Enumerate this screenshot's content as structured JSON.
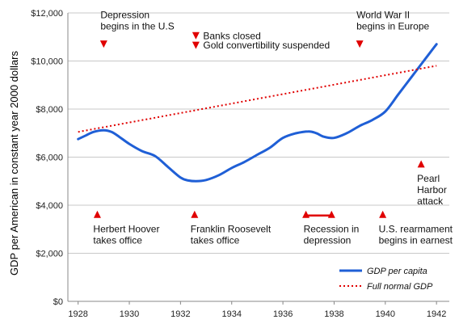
{
  "chart_data": {
    "type": "line",
    "ylabel": "GDP per American in constant year 2000 dollars",
    "xlim": [
      1927.6,
      1942.5
    ],
    "ylim": [
      0,
      12000
    ],
    "x_ticks": [
      1928,
      1930,
      1932,
      1934,
      1936,
      1938,
      1940,
      1942
    ],
    "y_ticks": [
      0,
      2000,
      4000,
      6000,
      8000,
      10000,
      12000
    ],
    "y_tick_labels": [
      "$0",
      "$2,000",
      "$4,000",
      "$6,000",
      "$8,000",
      "$10,000",
      "$12,000"
    ],
    "x_tick_labels": [
      "1928",
      "1930",
      "1932",
      "1934",
      "1936",
      "1938",
      "1940",
      "1942"
    ],
    "grid": "horizontal",
    "series": [
      {
        "name": "GDP per capita",
        "style": "solid",
        "color": "#1f5fd6",
        "x": [
          1928,
          1928.3,
          1928.6,
          1929,
          1929.3,
          1929.6,
          1930,
          1930.5,
          1931,
          1931.5,
          1932,
          1932.3,
          1932.6,
          1933,
          1933.5,
          1934,
          1934.5,
          1935,
          1935.5,
          1936,
          1936.5,
          1937,
          1937.3,
          1937.6,
          1938,
          1938.5,
          1939,
          1939.5,
          1940,
          1940.5,
          1941,
          1941.5,
          1942
        ],
        "y": [
          6750,
          6900,
          7050,
          7120,
          7050,
          6850,
          6550,
          6250,
          6050,
          5600,
          5150,
          5030,
          5000,
          5050,
          5250,
          5550,
          5800,
          6100,
          6400,
          6800,
          6990,
          7070,
          7000,
          6850,
          6800,
          7000,
          7300,
          7550,
          7900,
          8600,
          9300,
          10000,
          10700
        ]
      },
      {
        "name": "Full normal GDP",
        "style": "dotted",
        "color": "#e00000",
        "x": [
          1928,
          1942
        ],
        "y": [
          7050,
          9800
        ]
      }
    ],
    "annotations": [
      {
        "lines": [
          "Depression",
          "begins in the U.S"
        ],
        "year": 1929,
        "value": 10700,
        "marker": "down"
      },
      {
        "lines": [
          "Banks closed"
        ],
        "year": 1932.6,
        "value": 11050,
        "marker": "down"
      },
      {
        "lines": [
          "Gold convertibility suspended"
        ],
        "year": 1932.6,
        "value": 10650,
        "marker": "down"
      },
      {
        "lines": [
          "World War II",
          "begins in Europe"
        ],
        "year": 1939,
        "value": 10700,
        "marker": "down"
      },
      {
        "lines": [
          "Herbert Hoover",
          "takes office"
        ],
        "year": 1928.75,
        "value": 3620,
        "marker": "up"
      },
      {
        "lines": [
          "Franklin Roosevelt",
          "takes office"
        ],
        "year": 1932.55,
        "value": 3620,
        "marker": "up"
      },
      {
        "lines": [
          "Recession in",
          "depression"
        ],
        "year": 1936.9,
        "value": 3620,
        "marker": "range",
        "to_year": 1937.9
      },
      {
        "lines": [
          "U.S. rearmament",
          "begins in earnest"
        ],
        "year": 1939.9,
        "value": 3620,
        "marker": "up"
      },
      {
        "lines": [
          "Pearl",
          "Harbor",
          "attack"
        ],
        "year": 1941.4,
        "value": 5720,
        "marker": "up"
      }
    ],
    "legend": {
      "position": "bottom-right"
    }
  },
  "colors": {
    "gdp": "#1f5fd6",
    "normal": "#e00000",
    "marker": "#e00000",
    "grid": "#c8c8c8",
    "axis": "#888888"
  }
}
